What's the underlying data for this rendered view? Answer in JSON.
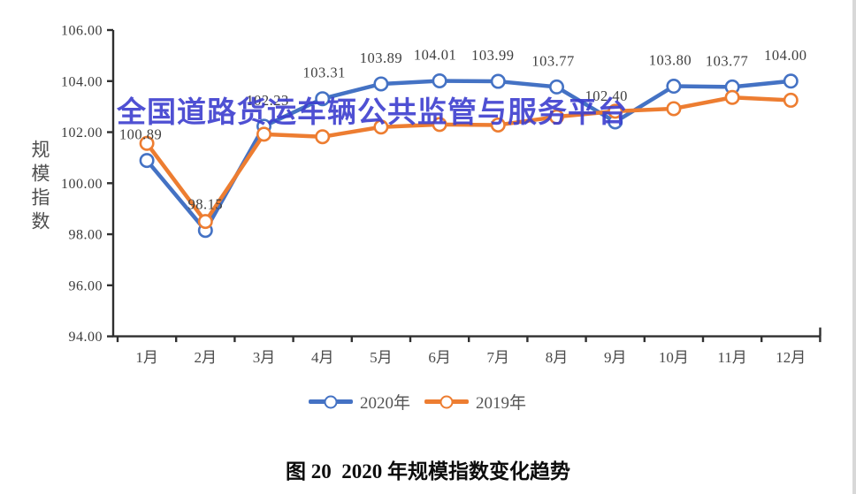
{
  "watermark": {
    "text": "全国道路货运车辆公共监管与服务平台",
    "color": "#3c3ecf"
  },
  "caption": "图 20  2020 年规模指数变化趋势",
  "chart_data": {
    "type": "line",
    "title": "图 20 2020 年规模指数变化趋势",
    "ylabel": "规模指数",
    "xlabel": "",
    "ylim": [
      94,
      106
    ],
    "ytick_step": 2,
    "ytick_labels": [
      "106.00",
      "104.00",
      "102.00",
      "100.00",
      "98.00",
      "96.00",
      "94.00"
    ],
    "grid": false,
    "legend_position": "bottom-center",
    "categories": [
      "1月",
      "2月",
      "3月",
      "4月",
      "5月",
      "6月",
      "7月",
      "8月",
      "9月",
      "10月",
      "11月",
      "12月"
    ],
    "series": [
      {
        "name": "2020年",
        "color": "#4472C4",
        "marker": "open-circle",
        "values": [
          100.89,
          98.15,
          102.23,
          103.31,
          103.89,
          104.01,
          103.99,
          103.77,
          102.4,
          103.8,
          103.77,
          104.0
        ],
        "data_labels": [
          "100.89",
          "98.15",
          "102.23",
          "103.31",
          "103.89",
          "104.01",
          "103.99",
          "103.77",
          "102.40",
          "103.80",
          "103.77",
          "104.00"
        ]
      },
      {
        "name": "2019年",
        "color": "#ED7D31",
        "marker": "open-circle",
        "values": [
          101.56,
          98.5,
          101.92,
          101.82,
          102.2,
          102.3,
          102.28,
          102.6,
          102.82,
          102.92,
          103.36,
          103.25
        ],
        "data_labels": []
      }
    ]
  }
}
